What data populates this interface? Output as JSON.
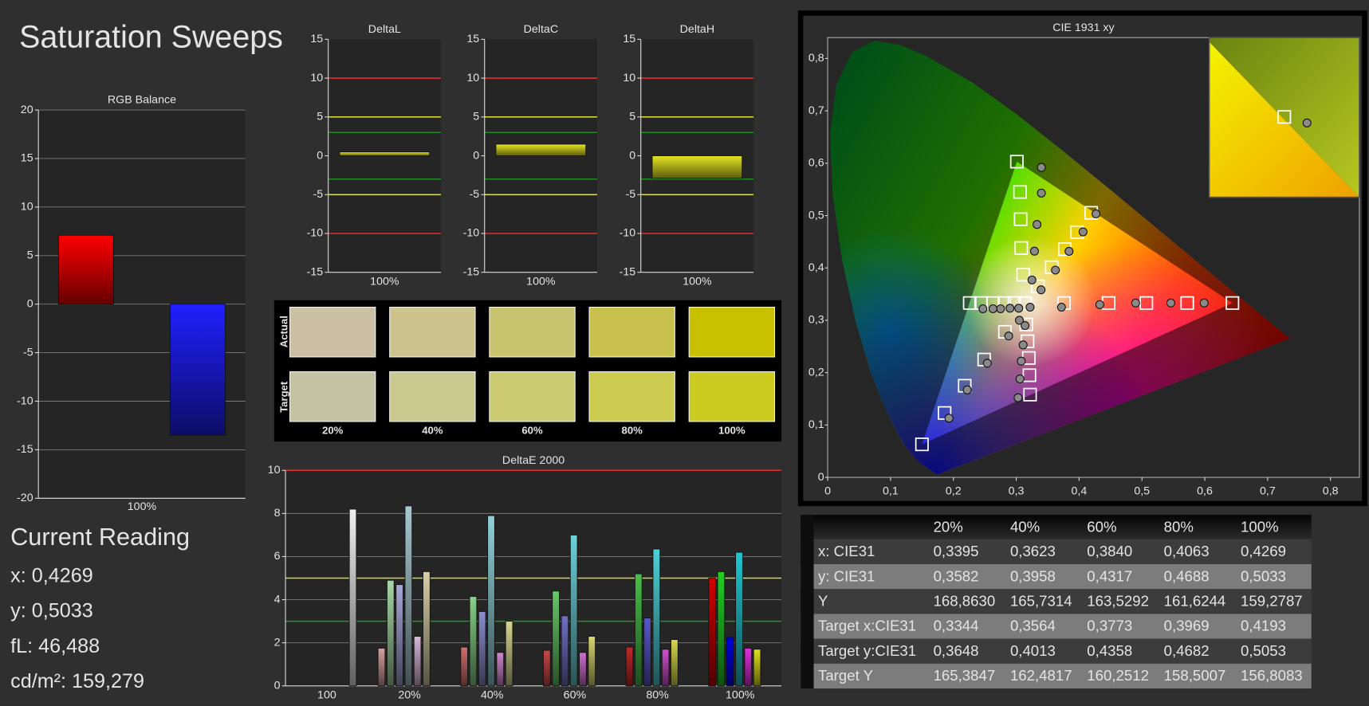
{
  "title": "Saturation Sweeps",
  "chart_data": [
    {
      "type": "bar",
      "title": "RGB Balance",
      "categories": [
        "100%"
      ],
      "series": [
        {
          "color": "#ff0000",
          "values": [
            7.1
          ]
        },
        {
          "color": "#2020ff",
          "values": [
            -13.5
          ]
        }
      ],
      "ylim": [
        -20,
        20
      ],
      "yticks": [
        -20,
        -15,
        -10,
        -5,
        0,
        5,
        10,
        15,
        20
      ],
      "grid": true
    },
    {
      "type": "bar",
      "title": "DeltaL",
      "categories": [
        "100%"
      ],
      "values": [
        0.5
      ],
      "color": "#e6e622",
      "ylim": [
        -15,
        15
      ],
      "yticks": [
        -15,
        -10,
        -5,
        0,
        5,
        10,
        15
      ],
      "grid": false,
      "reference_lines": [
        {
          "value": 10,
          "color": "#e03030"
        },
        {
          "value": 5,
          "color": "#e0e040"
        },
        {
          "value": 3,
          "color": "#1f8a1f"
        },
        {
          "value": -3,
          "color": "#1f8a1f"
        },
        {
          "value": -5,
          "color": "#e0e040"
        },
        {
          "value": -10,
          "color": "#e03030"
        }
      ]
    },
    {
      "type": "bar",
      "title": "DeltaC",
      "categories": [
        "100%"
      ],
      "values": [
        1.5
      ],
      "color": "#e6e622",
      "ylim": [
        -15,
        15
      ],
      "yticks": [
        -15,
        -10,
        -5,
        0,
        5,
        10,
        15
      ],
      "grid": false,
      "reference_lines": [
        {
          "value": 10,
          "color": "#e03030"
        },
        {
          "value": 5,
          "color": "#e0e040"
        },
        {
          "value": 3,
          "color": "#1f8a1f"
        },
        {
          "value": -3,
          "color": "#1f8a1f"
        },
        {
          "value": -5,
          "color": "#e0e040"
        },
        {
          "value": -10,
          "color": "#e03030"
        }
      ]
    },
    {
      "type": "bar",
      "title": "DeltaH",
      "categories": [
        "100%"
      ],
      "values": [
        -2.9
      ],
      "color": "#e6e622",
      "ylim": [
        -15,
        15
      ],
      "yticks": [
        -15,
        -10,
        -5,
        0,
        5,
        10,
        15
      ],
      "grid": false,
      "reference_lines": [
        {
          "value": 10,
          "color": "#e03030"
        },
        {
          "value": 5,
          "color": "#e0e040"
        },
        {
          "value": 3,
          "color": "#1f8a1f"
        },
        {
          "value": -3,
          "color": "#1f8a1f"
        },
        {
          "value": -5,
          "color": "#e0e040"
        },
        {
          "value": -10,
          "color": "#e03030"
        }
      ]
    },
    {
      "type": "bar",
      "title": "DeltaE 2000",
      "categories": [
        "100",
        "20%",
        "40%",
        "60%",
        "80%",
        "100%"
      ],
      "series": [
        {
          "colors": [
            null,
            "#d8a0a0",
            "#d07070",
            "#c84848",
            "#c02828",
            "#d00000"
          ],
          "values": [
            null,
            1.75,
            1.8,
            1.65,
            1.8,
            5.0
          ]
        },
        {
          "colors": [
            null,
            "#a8d8a8",
            "#88d088",
            "#68c868",
            "#48c048",
            "#20d020"
          ],
          "values": [
            null,
            4.9,
            4.15,
            4.4,
            5.2,
            5.3
          ]
        },
        {
          "colors": [
            null,
            "#a8a8d8",
            "#8c8cd0",
            "#7070c8",
            "#5858c8",
            "#0000e0"
          ],
          "values": [
            null,
            4.7,
            3.45,
            3.25,
            3.15,
            2.25
          ]
        },
        {
          "colors": [
            null,
            "#a8c8d0",
            "#90d0d8",
            "#70d0d8",
            "#50d0d8",
            "#20c8d0"
          ],
          "values": [
            null,
            8.35,
            7.9,
            7.0,
            6.35,
            6.2
          ]
        },
        {
          "colors": [
            null,
            "#d8b8d8",
            "#d088d0",
            "#d070d0",
            "#d050d0",
            "#e030e0"
          ],
          "values": [
            null,
            2.3,
            1.55,
            1.55,
            1.7,
            1.75
          ]
        },
        {
          "colors": [
            null,
            "#d8d0a8",
            "#d8d890",
            "#d8d870",
            "#d8d850",
            "#e0e020"
          ],
          "values": [
            null,
            5.3,
            3.0,
            2.3,
            2.15,
            1.7
          ]
        },
        {
          "colors": [
            "#f0f0f0",
            null,
            null,
            null,
            null,
            null
          ],
          "values": [
            8.2,
            null,
            null,
            null,
            null,
            null
          ]
        }
      ],
      "ylim": [
        0,
        10
      ],
      "yticks": [
        0,
        2,
        4,
        6,
        8,
        10
      ],
      "grid": true,
      "reference_lines": [
        {
          "value": 10,
          "color": "#e03030"
        },
        {
          "value": 5,
          "color": "#d8d840"
        },
        {
          "value": 3,
          "color": "#1f9a1f"
        }
      ]
    },
    {
      "type": "scatter",
      "title": "CIE 1931 xy",
      "xlim": [
        0,
        0.846
      ],
      "ylim": [
        0,
        0.84
      ],
      "xticks": [
        0,
        {
          "value": 0.1,
          "label": "0,1"
        },
        {
          "value": 0.2,
          "label": "0,2"
        },
        {
          "value": 0.3,
          "label": "0,3"
        },
        {
          "value": 0.4,
          "label": "0,4"
        },
        {
          "value": 0.5,
          "label": "0,5"
        },
        {
          "value": 0.6,
          "label": "0,6"
        },
        {
          "value": 0.7,
          "label": "0,7"
        },
        {
          "value": 0.8,
          "label": "0,8"
        }
      ],
      "yticks": [
        0,
        {
          "value": 0.1,
          "label": "0,1"
        },
        {
          "value": 0.2,
          "label": "0,2"
        },
        {
          "value": 0.3,
          "label": "0,3"
        },
        {
          "value": 0.4,
          "label": "0,4"
        },
        {
          "value": 0.5,
          "label": "0,5"
        },
        {
          "value": 0.6,
          "label": "0,6"
        },
        {
          "value": 0.7,
          "label": "0,7"
        },
        {
          "value": 0.8,
          "label": "0,8"
        }
      ],
      "series": [
        {
          "marker": "square",
          "color": "#ffffff",
          "x": [
            0.314,
            0.376,
            0.447,
            0.507,
            0.572,
            0.644,
            0.311,
            0.308,
            0.307,
            0.306,
            0.301,
            0.282,
            0.249,
            0.218,
            0.186,
            0.15,
            0.297,
            0.281,
            0.263,
            0.244,
            0.226,
            0.316,
            0.318,
            0.32,
            0.321,
            0.322,
            0.3344,
            0.3564,
            0.3773,
            0.3969,
            0.4193
          ],
          "y": [
            0.333,
            0.333,
            0.333,
            0.333,
            0.333,
            0.333,
            0.387,
            0.438,
            0.493,
            0.545,
            0.603,
            0.278,
            0.225,
            0.175,
            0.123,
            0.063,
            0.333,
            0.333,
            0.333,
            0.333,
            0.333,
            0.292,
            0.26,
            0.228,
            0.195,
            0.158,
            0.3648,
            0.4013,
            0.4358,
            0.4682,
            0.5053
          ]
        },
        {
          "marker": "circle",
          "color": "#8a8a8a",
          "x": [
            0.322,
            0.372,
            0.433,
            0.49,
            0.546,
            0.599,
            0.325,
            0.329,
            0.333,
            0.34,
            0.34,
            0.305,
            0.288,
            0.254,
            0.222,
            0.193,
            0.304,
            0.29,
            0.275,
            0.263,
            0.247,
            0.314,
            0.311,
            0.308,
            0.306,
            0.303,
            0.3395,
            0.3623,
            0.384,
            0.4063,
            0.4269
          ],
          "y": [
            0.325,
            0.325,
            0.33,
            0.333,
            0.333,
            0.333,
            0.377,
            0.432,
            0.483,
            0.543,
            0.592,
            0.3,
            0.27,
            0.218,
            0.167,
            0.113,
            0.323,
            0.323,
            0.322,
            0.322,
            0.322,
            0.29,
            0.253,
            0.222,
            0.188,
            0.152,
            0.3582,
            0.3958,
            0.4317,
            0.4688,
            0.5033
          ]
        }
      ]
    }
  ],
  "swatches": {
    "columns": [
      "20%",
      "40%",
      "60%",
      "80%",
      "100%"
    ],
    "rows": [
      {
        "label": "Actual",
        "colors": [
          "#cbbfa6",
          "#cdc38f",
          "#c8c36f",
          "#c8c04d",
          "#c9c000"
        ]
      },
      {
        "label": "Target",
        "colors": [
          "#c3c2a3",
          "#c9c88e",
          "#cbcb71",
          "#cccb50",
          "#cccb20"
        ]
      }
    ]
  },
  "current_reading": {
    "title": "Current Reading",
    "lines": [
      "x: 0,4269",
      "y: 0,5033",
      "fL: 46,488",
      "cd/m²: 159,279"
    ]
  },
  "table": {
    "columns": [
      "20%",
      "40%",
      "60%",
      "80%",
      "100%"
    ],
    "rows": [
      {
        "label": "x: CIE31",
        "cells": [
          "0,3395",
          "0,3623",
          "0,3840",
          "0,4063",
          "0,4269"
        ]
      },
      {
        "label": "y: CIE31",
        "cells": [
          "0,3582",
          "0,3958",
          "0,4317",
          "0,4688",
          "0,5033"
        ]
      },
      {
        "label": "Y",
        "cells": [
          "168,8630",
          "165,7314",
          "163,5292",
          "161,6244",
          "159,2787"
        ]
      },
      {
        "label": "Target x:CIE31",
        "cells": [
          "0,3344",
          "0,3564",
          "0,3773",
          "0,3969",
          "0,4193"
        ]
      },
      {
        "label": "Target y:CIE31",
        "cells": [
          "0,3648",
          "0,4013",
          "0,4358",
          "0,4682",
          "0,5053"
        ]
      },
      {
        "label": "Target Y",
        "cells": [
          "165,3847",
          "162,4817",
          "160,2512",
          "158,5007",
          "156,8083"
        ]
      }
    ]
  }
}
